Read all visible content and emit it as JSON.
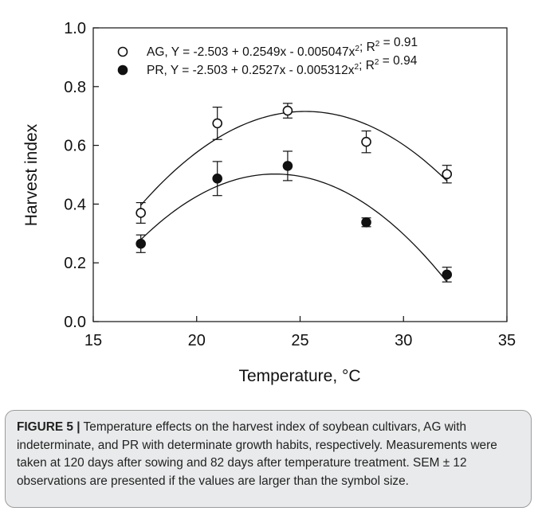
{
  "chart_data": {
    "type": "scatter",
    "xlabel": "Temperature, °C",
    "ylabel": "Harvest index",
    "xlim": [
      15,
      35
    ],
    "ylim": [
      0.0,
      1.0
    ],
    "x_ticks": [
      "15",
      "20",
      "25",
      "30",
      "35"
    ],
    "y_ticks": [
      "0.0",
      "0.2",
      "0.4",
      "0.6",
      "0.8",
      "1.0"
    ],
    "grid": false,
    "legend_position": "top-left",
    "series": [
      {
        "name": "AG",
        "marker": "open-circle",
        "x": [
          17.3,
          21.0,
          24.4,
          28.2,
          32.1
        ],
        "y": [
          0.37,
          0.675,
          0.718,
          0.612,
          0.502
        ],
        "sem": [
          0.035,
          0.055,
          0.025,
          0.037,
          0.03
        ],
        "fit": {
          "a": -2.503,
          "b": 0.2549,
          "c": -0.005047
        },
        "legend_text": "AG, Y = -2.503 + 0.2549x - 0.005047x",
        "r2_text": "; R",
        "r2_value_text": " = 0.91",
        "superscript": "2"
      },
      {
        "name": "PR",
        "marker": "filled-circle",
        "x": [
          17.3,
          21.0,
          24.4,
          28.2,
          32.1
        ],
        "y": [
          0.265,
          0.487,
          0.53,
          0.338,
          0.16
        ],
        "sem": [
          0.03,
          0.058,
          0.05,
          0.015,
          0.025
        ],
        "fit": {
          "a": -2.503,
          "b": 0.2527,
          "c": -0.005312
        },
        "legend_text": "PR, Y = -2.503 + 0.2527x - 0.005312x",
        "r2_text": "; R",
        "r2_value_text": " = 0.94",
        "superscript": "2"
      }
    ],
    "curve_x_range": [
      17.3,
      32.1
    ]
  },
  "caption": {
    "label": "FIGURE 5 |",
    "text": " Temperature effects on the harvest index of soybean cultivars, AG with indeterminate, and PR with determinate growth habits, respectively. Measurements were taken at 120 days after sowing and 82 days after temperature treatment. SEM ± 12 observations are presented if the values are larger than the symbol size."
  },
  "colors": {
    "ink": "#111111",
    "caption_bg": "#e9eaeb",
    "caption_border": "#9c9c9c"
  }
}
